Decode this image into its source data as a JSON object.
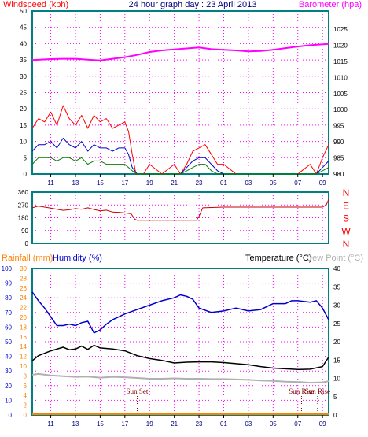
{
  "chart_data": [
    {
      "type": "line",
      "title": "24 hour graph day : 23 April 2013",
      "ylabel": "Windspeed (kph)",
      "y2label": "Barometer (hpa)",
      "ylim": [
        0,
        50
      ],
      "y2lim": [
        980,
        1025
      ],
      "yticks": [
        0,
        5,
        10,
        15,
        20,
        25,
        30,
        35,
        40,
        45,
        50
      ],
      "y2ticks": [
        980,
        985,
        990,
        995,
        1000,
        1005,
        1010,
        1015,
        1020,
        1025
      ],
      "x_hours": [
        9.5,
        9.5
      ],
      "x_ticks": [
        "11",
        "13",
        "15",
        "17",
        "19",
        "21",
        "23",
        "01",
        "03",
        "05",
        "07",
        "09"
      ],
      "grid": true,
      "series": [
        {
          "name": "Barometer (hpa)",
          "axis": "right",
          "color": "#ff00ff",
          "x": [
            9.5,
            11,
            12,
            13,
            14,
            15,
            16,
            17,
            18,
            19,
            20,
            21,
            22,
            23,
            24,
            25,
            26,
            27,
            28,
            29,
            30,
            31,
            32,
            33.5
          ],
          "y": [
            1015.4,
            1015.7,
            1015.8,
            1015.8,
            1015.5,
            1015.3,
            1015.8,
            1016.3,
            1017.0,
            1017.9,
            1018.4,
            1018.7,
            1019.0,
            1019.3,
            1018.8,
            1018.6,
            1018.4,
            1018.1,
            1018.2,
            1018.6,
            1019.1,
            1019.6,
            1020.0,
            1020.4
          ]
        },
        {
          "name": "Wind gust",
          "axis": "left",
          "color": "#ff0000",
          "x": [
            9.5,
            10,
            10.5,
            11,
            11.5,
            12,
            12.5,
            13,
            13.5,
            14,
            14.5,
            15,
            15.5,
            16,
            16.5,
            17,
            17.3,
            17.6,
            17.9,
            18.5,
            19,
            20,
            21,
            21.5,
            22,
            22.5,
            23,
            23.5,
            24,
            24.5,
            25,
            26,
            27,
            28,
            29,
            30,
            31,
            32,
            32.5,
            33,
            33.5
          ],
          "y": [
            14,
            17,
            16,
            19,
            15,
            21,
            17,
            15,
            18,
            14,
            18,
            16,
            17,
            14,
            15,
            16,
            13,
            6,
            0,
            0,
            3,
            0,
            3,
            0,
            3,
            7,
            8,
            9,
            6,
            3,
            3,
            0,
            0,
            0,
            0,
            0,
            0,
            3,
            0,
            5,
            9
          ]
        },
        {
          "name": "Wind average",
          "axis": "left",
          "color": "#0000cc",
          "x": [
            9.5,
            10,
            10.5,
            11,
            11.5,
            12,
            12.5,
            13,
            13.5,
            14,
            14.5,
            15,
            15.5,
            16,
            16.5,
            17,
            17.3,
            17.6,
            18,
            21.5,
            22,
            22.5,
            23,
            23.5,
            24,
            24.5,
            25,
            32.5,
            33,
            33.5
          ],
          "y": [
            7,
            9,
            9,
            10,
            8,
            11,
            9,
            8,
            10,
            7,
            9,
            8,
            8,
            7,
            8,
            8,
            6,
            2,
            0,
            0,
            2,
            4,
            5,
            5,
            3,
            1,
            0,
            0,
            2,
            4
          ]
        },
        {
          "name": "Wind speed",
          "axis": "left",
          "color": "#008000",
          "x": [
            9.5,
            10,
            10.5,
            11,
            11.5,
            12,
            12.5,
            13,
            13.5,
            14,
            14.5,
            15,
            15.5,
            16,
            16.5,
            17,
            17.3,
            17.6,
            18,
            21.5,
            22,
            22.5,
            23,
            23.5,
            24,
            24.5,
            25,
            32.5,
            33,
            33.5
          ],
          "y": [
            3,
            5,
            5,
            5,
            4,
            5,
            5,
            4,
            5,
            3,
            4,
            4,
            3,
            3,
            3,
            3,
            2,
            1,
            0,
            0,
            1,
            2,
            3,
            3,
            1,
            0,
            0,
            0,
            1,
            2
          ]
        }
      ]
    },
    {
      "type": "line",
      "title": "",
      "ylim": [
        0,
        360
      ],
      "yticks": [
        0,
        90,
        180,
        270,
        360
      ],
      "direction_labels": [
        "N",
        "W",
        "S",
        "E",
        "N"
      ],
      "series": [
        {
          "name": "Wind direction",
          "color": "#cc0000",
          "x": [
            9.5,
            10,
            10.5,
            11,
            11.5,
            12,
            12.5,
            13,
            13.5,
            14,
            14.5,
            15,
            15.5,
            16,
            16.5,
            17,
            17.5,
            17.8,
            18,
            20,
            22,
            22.8,
            23,
            23.3,
            25,
            30,
            33,
            33.3,
            33.5
          ],
          "y": [
            250,
            262,
            255,
            248,
            240,
            232,
            236,
            244,
            240,
            250,
            238,
            228,
            233,
            220,
            218,
            214,
            208,
            170,
            162,
            162,
            162,
            162,
            190,
            250,
            255,
            255,
            255,
            270,
            310
          ]
        }
      ]
    },
    {
      "type": "line",
      "title": "",
      "labels": {
        "rainfall": "Rainfall (mm)",
        "humidity": "Humidity (%)",
        "temperature": "Temperature (°C)",
        "dew_point": "Dew Point (°C)"
      },
      "rain_ylim": [
        0,
        100
      ],
      "rain_yticks": [
        0,
        10,
        20,
        30,
        40,
        50,
        60,
        70,
        80,
        90,
        100
      ],
      "hum_ylim": [
        0,
        30
      ],
      "hum_yticks": [
        0,
        2,
        4,
        6,
        8,
        10,
        12,
        14,
        16,
        18,
        20,
        22,
        24,
        26,
        28,
        30
      ],
      "temp_ylim": [
        0,
        40
      ],
      "temp_yticks": [
        0,
        5,
        10,
        15,
        20,
        25,
        30,
        35,
        40
      ],
      "x_ticks": [
        "11",
        "13",
        "15",
        "17",
        "19",
        "21",
        "23",
        "01",
        "03",
        "05",
        "07",
        "09"
      ],
      "annotations": [
        {
          "text": "Sun Set",
          "hour": 18.0
        },
        {
          "text": "Sun Rise",
          "hour": 31.3
        },
        {
          "text": "Sun Rise",
          "hour": 32.6
        }
      ],
      "series": [
        {
          "name": "Humidity (%)",
          "color": "#0000cc",
          "x": [
            9.5,
            10,
            10.5,
            11,
            11.5,
            12,
            12.5,
            13,
            13.5,
            14,
            14.5,
            15,
            15.5,
            16,
            16.5,
            17,
            18,
            19,
            20,
            21,
            21.5,
            22,
            22.5,
            23,
            24,
            25,
            26,
            27,
            28,
            29,
            30,
            30.5,
            31,
            32,
            32.5,
            33,
            33.5
          ],
          "y": [
            84,
            78,
            73,
            67,
            61,
            61,
            62,
            61,
            63,
            64,
            56,
            58,
            62,
            65,
            67,
            69,
            72,
            75,
            78,
            80,
            82,
            81,
            79,
            73,
            70,
            71,
            73,
            71,
            72,
            76,
            76,
            78,
            78,
            77,
            78,
            73,
            65
          ]
        },
        {
          "name": "Temperature (°C)",
          "color": "#000000",
          "x": [
            9.5,
            10,
            11,
            12,
            12.5,
            13,
            13.5,
            14,
            14.5,
            15,
            16,
            17,
            18,
            19,
            20,
            21,
            22,
            23,
            24,
            25,
            26,
            27,
            28,
            29,
            30,
            31,
            32,
            33,
            33.5
          ],
          "y": [
            14.8,
            16.2,
            17.5,
            18.5,
            17.8,
            18.0,
            18.8,
            17.9,
            19.0,
            18.3,
            18.0,
            17.5,
            16.2,
            15.4,
            14.9,
            14.2,
            14.4,
            14.5,
            14.5,
            14.3,
            14.0,
            13.7,
            13.2,
            12.8,
            12.6,
            12.4,
            12.5,
            13.2,
            15.8
          ]
        },
        {
          "name": "Dew Point (°C)",
          "color": "#b0b0b0",
          "x": [
            9.5,
            10,
            11,
            12,
            13,
            14,
            15,
            16,
            17,
            18,
            19,
            20,
            21,
            22,
            23,
            24,
            25,
            26,
            27,
            28,
            29,
            30,
            31,
            32,
            33,
            33.5
          ],
          "y": [
            11.0,
            11.2,
            10.8,
            10.6,
            10.4,
            10.5,
            10.2,
            10.4,
            10.3,
            10.1,
            9.9,
            9.9,
            10.0,
            9.9,
            9.9,
            9.8,
            9.8,
            9.7,
            9.6,
            9.4,
            9.3,
            9.1,
            9.0,
            8.8,
            8.9,
            9.2
          ]
        },
        {
          "name": "Rainfall (mm)",
          "color": "#ff8000",
          "x": [
            9.5,
            33.5
          ],
          "y": [
            0,
            0
          ]
        }
      ]
    }
  ],
  "colors": {
    "frame": "#008080",
    "grid": "#ff00ff",
    "title": "#000080",
    "wind_label": "#ff0000",
    "baro_label": "#ff00ff",
    "dir_label": "#ff0000",
    "rain_label": "#ff8000",
    "hum_label": "#0000cc",
    "temp_label": "#000000",
    "dew_label": "#b0b0b0",
    "x_tick_text": "#000080",
    "annotation": "#800000"
  }
}
